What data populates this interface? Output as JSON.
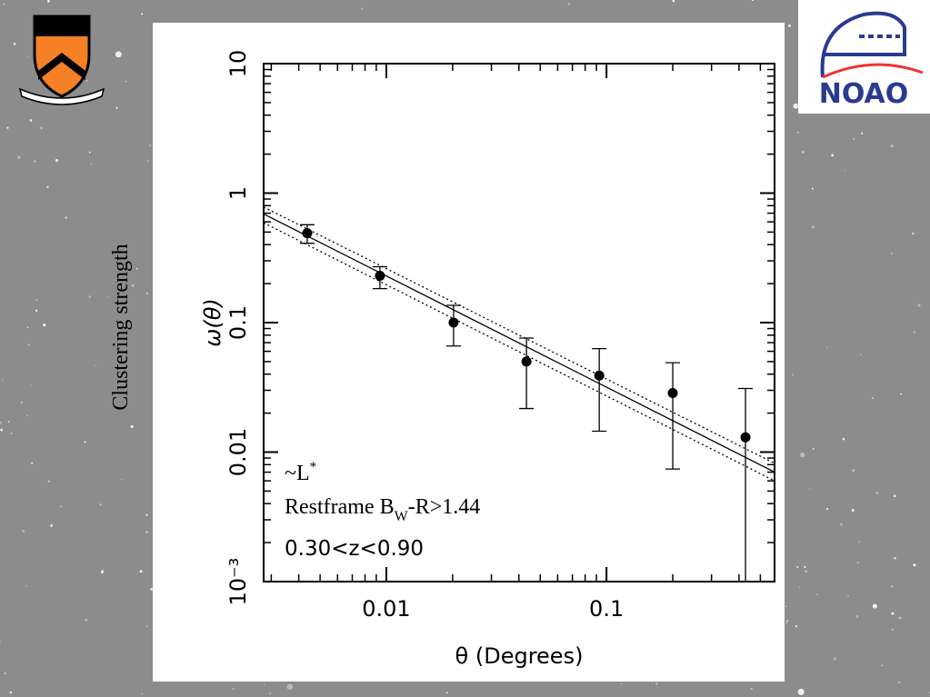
{
  "side_label": "Clustering strength",
  "logo_text": "NOAO",
  "chart_data": {
    "type": "scatter",
    "log_x": true,
    "log_y": true,
    "minor_ticks": true,
    "ticks_all_sides": true,
    "xlabel": "θ (Degrees)",
    "ylabel": "ω(θ)",
    "xlim": [
      0.00277,
      0.58
    ],
    "ylim": [
      0.001,
      10
    ],
    "xticks": [
      0.01,
      0.1
    ],
    "yticks": [
      {
        "value": 0.001,
        "label": "10⁻³"
      },
      0.01,
      0.1,
      1,
      10
    ],
    "x": [
      0.00437,
      0.00935,
      0.0202,
      0.0433,
      0.0927,
      0.2,
      0.428
    ],
    "series": [
      {
        "color": "#000000",
        "values": [
          0.49,
          0.23,
          0.1,
          0.05,
          0.039,
          0.0286,
          0.013
        ],
        "y_low": [
          0.41,
          0.183,
          0.066,
          0.0217,
          0.0145,
          0.0074,
          0.001
        ],
        "y_high": [
          0.57,
          0.27,
          0.136,
          0.076,
          0.063,
          0.049,
          0.031
        ]
      }
    ],
    "lines": [
      {
        "style": "solid",
        "x": [
          0.00277,
          0.58
        ],
        "values": [
          0.69,
          0.00701
        ]
      },
      {
        "style": "dotted",
        "x": [
          0.00277,
          0.58
        ],
        "values": [
          0.78,
          0.0082
        ]
      },
      {
        "style": "dotted",
        "x": [
          0.00277,
          0.58
        ],
        "values": [
          0.59,
          0.006
        ]
      }
    ],
    "annotations": [
      [
        "~L",
        "*"
      ],
      [
        "Restframe B",
        "W",
        "-R>1.44"
      ],
      [
        "0.30<z<0.90"
      ]
    ]
  }
}
